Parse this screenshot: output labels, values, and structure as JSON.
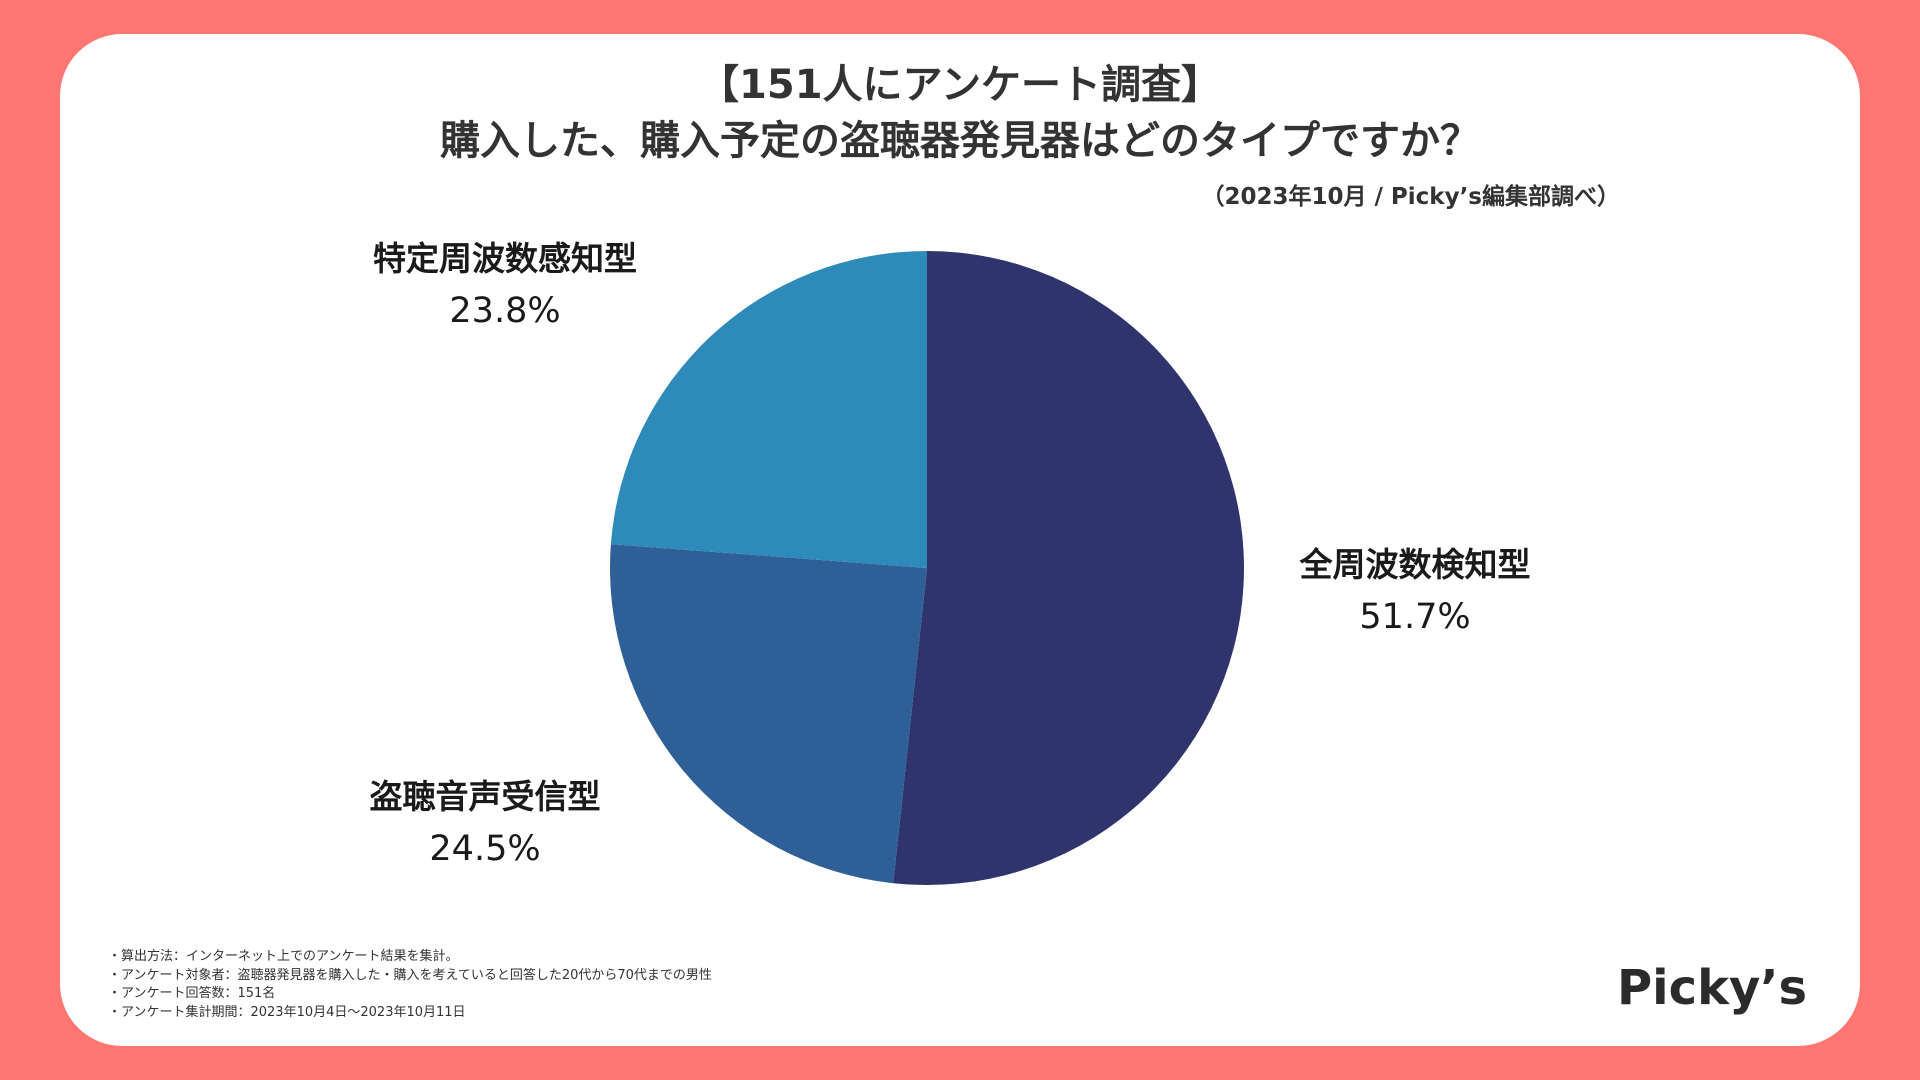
{
  "title_line1": "【151人にアンケート調査】",
  "title_line2": "購入した、購入予定の盗聴器発見器はどのタイプですか？",
  "source": "（2023年10月 / Picky’s編集部調べ）",
  "colors": {
    "background": "#ff7672",
    "card": "#ffffff",
    "slice_1": "#30346c",
    "slice_2": "#2e5f97",
    "slice_3": "#2e8bb9"
  },
  "chart_data": {
    "type": "pie",
    "slices": [
      {
        "label": "全周波数検知型",
        "value": 51.7,
        "value_label": "51.7%",
        "color": "#30346c"
      },
      {
        "label": "盗聴音声受信型",
        "value": 24.5,
        "value_label": "24.5%",
        "color": "#2e5f97"
      },
      {
        "label": "特定周波数感知型",
        "value": 23.8,
        "value_label": "23.8%",
        "color": "#2e8bb9"
      }
    ],
    "start": "12 o'clock",
    "direction": "clockwise"
  },
  "notes": [
    "・算出方法：インターネット上でのアンケート結果を集計。",
    "・アンケート対象者：盗聴器発見器を購入した・購入を考えていると回答した20代から70代までの男性",
    "・アンケート回答数：151名",
    "・アンケート集計期間：2023年10月4日〜2023年10月11日"
  ],
  "logo": "Picky’s"
}
